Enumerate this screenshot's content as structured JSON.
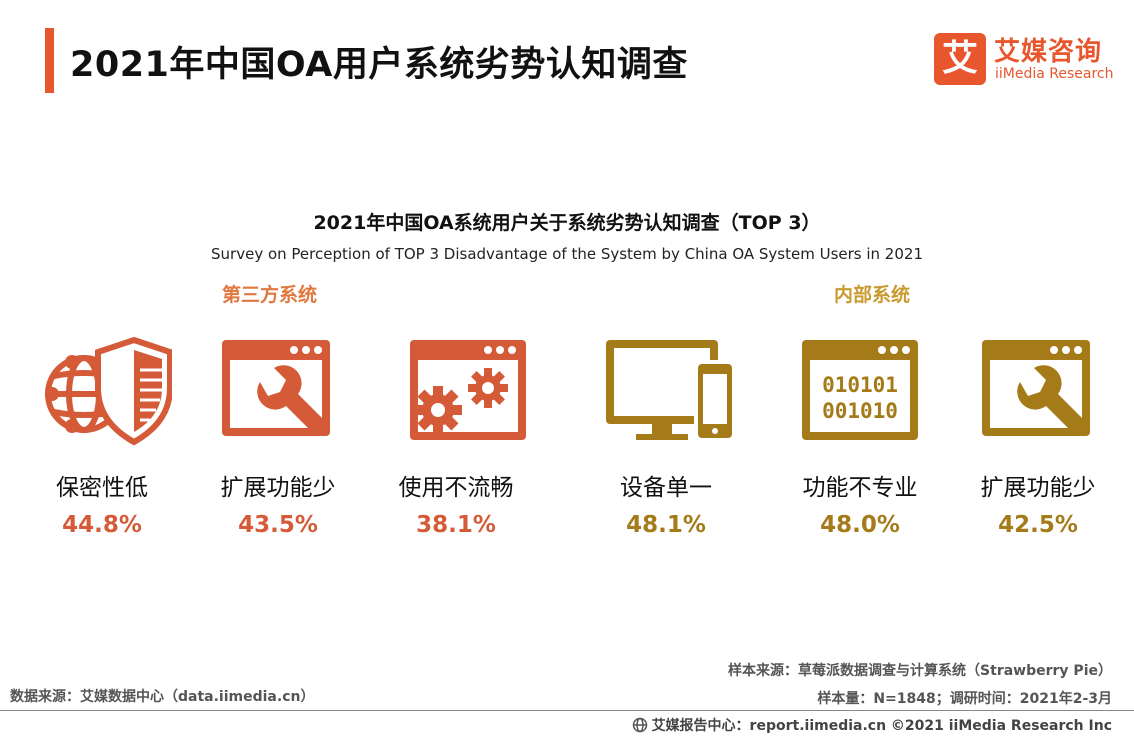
{
  "header": {
    "title": "2021年中国OA用户系统劣势认知调查",
    "accent_color": "#e8562e"
  },
  "logo": {
    "mark_char": "艾",
    "name_cn": "艾媒咨询",
    "name_en": "iiMedia Research"
  },
  "chart": {
    "title": "2021年中国OA系统用户关于系统劣势认知调查（TOP 3）",
    "subtitle": "Survey on Perception of TOP 3 Disadvantage of the System by China OA System Users in 2021"
  },
  "chart_data": {
    "type": "table",
    "title": "2021年中国OA系统用户关于系统劣势认知调查（TOP 3）",
    "groups": [
      {
        "name": "第三方系统",
        "color": "#d45a38",
        "items": [
          {
            "label": "保密性低",
            "value": 44.8,
            "display": "44.8%",
            "icon": "shield-globe-icon"
          },
          {
            "label": "扩展功能少",
            "value": 43.5,
            "display": "43.5%",
            "icon": "window-wrench-icon"
          },
          {
            "label": "使用不流畅",
            "value": 38.1,
            "display": "38.1%",
            "icon": "window-gears-icon"
          }
        ]
      },
      {
        "name": "内部系统",
        "color": "#a57a18",
        "items": [
          {
            "label": "设备单一",
            "value": 48.1,
            "display": "48.1%",
            "icon": "monitor-phone-icon"
          },
          {
            "label": "功能不专业",
            "value": 48.0,
            "display": "48.0%",
            "icon": "window-binary-icon"
          },
          {
            "label": "扩展功能少",
            "value": 42.5,
            "display": "42.5%",
            "icon": "window-wrench-icon"
          }
        ]
      }
    ]
  },
  "icons": {
    "binary_line1": "010101",
    "binary_line2": "001010"
  },
  "footer": {
    "data_source": "数据来源：艾媒数据中心（data.iimedia.cn）",
    "sample_source": "样本来源：草莓派数据调查与计算系统（Strawberry  Pie）",
    "sample_info": "样本量：N=1848；调研时间：2021年2-3月",
    "report_center": "艾媒报告中心：report.iimedia.cn ©2021  iiMedia Research  Inc"
  }
}
